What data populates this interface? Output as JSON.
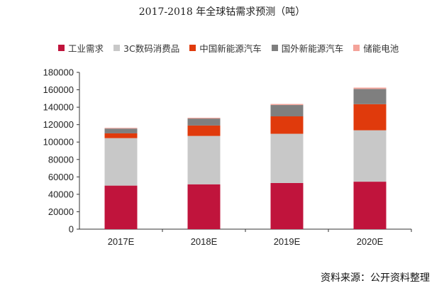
{
  "title": "2017-2018 年全球钴需求预测（吨）",
  "source": "资料来源：公开资料整理",
  "chart_data": {
    "type": "bar",
    "stacked": true,
    "categories": [
      "2017E",
      "2018E",
      "2019E",
      "2020E"
    ],
    "ylim": [
      0,
      180000
    ],
    "yticks": [
      "0",
      "20000",
      "40000",
      "60000",
      "80000",
      "100000",
      "120000",
      "140000",
      "160000",
      "180000"
    ],
    "grid": false,
    "legend_position": "top",
    "series": [
      {
        "name": "工业需求",
        "color": "#c0143c",
        "values": [
          50000,
          51500,
          53000,
          54500
        ]
      },
      {
        "name": "3C数码消费品",
        "color": "#c8c8c8",
        "values": [
          54500,
          55500,
          56500,
          59000
        ]
      },
      {
        "name": "中国新能源汽车",
        "color": "#e03a0c",
        "values": [
          5500,
          12000,
          20000,
          30000
        ]
      },
      {
        "name": "国外新能源汽车",
        "color": "#7f7f7f",
        "values": [
          5500,
          8000,
          13000,
          17500
        ]
      },
      {
        "name": "储能电池",
        "color": "#f4a39a",
        "values": [
          800,
          900,
          1200,
          1500
        ]
      }
    ]
  }
}
